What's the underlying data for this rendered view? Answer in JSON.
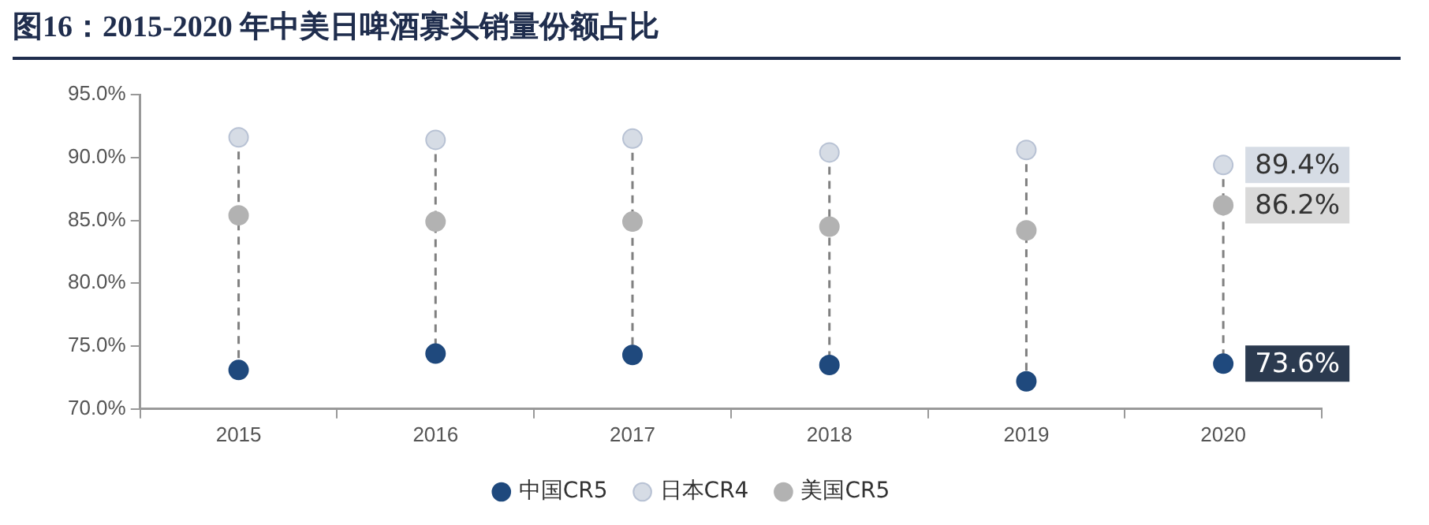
{
  "chart_data": {
    "type": "scatter",
    "title": "图16：2015-2020 年中美日啤酒寡头销量份额占比",
    "categories": [
      "2015",
      "2016",
      "2017",
      "2018",
      "2019",
      "2020"
    ],
    "series": [
      {
        "name": "中国CR5",
        "color": "#1f497d",
        "values": [
          73.1,
          74.4,
          74.3,
          73.5,
          72.2,
          73.6
        ],
        "value_labels": [
          null,
          null,
          null,
          null,
          null,
          "73.6%"
        ]
      },
      {
        "name": "日本CR4",
        "color": "#d6dce5",
        "values": [
          91.6,
          91.4,
          91.5,
          90.4,
          90.6,
          89.4
        ],
        "value_labels": [
          null,
          null,
          null,
          null,
          null,
          "89.4%"
        ]
      },
      {
        "name": "美国CR5",
        "color": "#b2b2b2",
        "values": [
          85.4,
          84.9,
          84.9,
          84.5,
          84.2,
          86.2
        ],
        "value_labels": [
          null,
          null,
          null,
          null,
          null,
          "86.2%"
        ]
      }
    ],
    "ylim": [
      70,
      95
    ],
    "yticks": [
      {
        "value": 70,
        "label": "70.0%"
      },
      {
        "value": 75,
        "label": "75.0%"
      },
      {
        "value": 80,
        "label": "80.0%"
      },
      {
        "value": 85,
        "label": "85.0%"
      },
      {
        "value": 90,
        "label": "90.0%"
      },
      {
        "value": 95,
        "label": "95.0%"
      }
    ],
    "legend": "bottom",
    "marker": "circle"
  }
}
